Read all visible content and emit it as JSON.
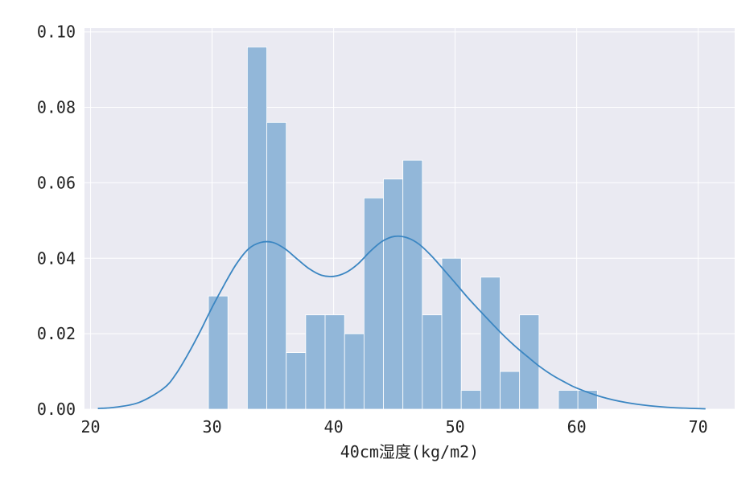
{
  "chart_data": {
    "type": "histogram",
    "xlabel": "40cm湿度(kg/m2)",
    "ylabel": "",
    "title": "",
    "xlim": [
      19.5,
      73
    ],
    "ylim": [
      0,
      0.101
    ],
    "grid": true,
    "colors": {
      "plot_background": "#eaeaf2",
      "grid": "#ffffff",
      "bar_fill": "#92b7d9",
      "kde_line": "#3b86c2"
    },
    "x_ticks": [
      {
        "value": 20,
        "label": "20"
      },
      {
        "value": 30,
        "label": "30"
      },
      {
        "value": 40,
        "label": "40"
      },
      {
        "value": 50,
        "label": "50"
      },
      {
        "value": 60,
        "label": "60"
      },
      {
        "value": 70,
        "label": "70"
      }
    ],
    "y_ticks": [
      {
        "value": 0,
        "label": "0.00"
      },
      {
        "value": 0.02,
        "label": "0.02"
      },
      {
        "value": 0.04,
        "label": "0.04"
      },
      {
        "value": 0.06,
        "label": "0.06"
      },
      {
        "value": 0.08,
        "label": "0.08"
      },
      {
        "value": 0.1,
        "label": "0.10"
      }
    ],
    "bin_width": 1.6,
    "bins": [
      {
        "start": 29.7,
        "density": 0.03
      },
      {
        "start": 31.3,
        "density": 0.0
      },
      {
        "start": 32.9,
        "density": 0.096
      },
      {
        "start": 34.5,
        "density": 0.076
      },
      {
        "start": 36.1,
        "density": 0.015
      },
      {
        "start": 37.7,
        "density": 0.025
      },
      {
        "start": 39.3,
        "density": 0.025
      },
      {
        "start": 40.9,
        "density": 0.02
      },
      {
        "start": 42.5,
        "density": 0.056
      },
      {
        "start": 44.1,
        "density": 0.061
      },
      {
        "start": 45.7,
        "density": 0.066
      },
      {
        "start": 47.3,
        "density": 0.025
      },
      {
        "start": 48.9,
        "density": 0.04
      },
      {
        "start": 50.5,
        "density": 0.005
      },
      {
        "start": 52.1,
        "density": 0.035
      },
      {
        "start": 53.7,
        "density": 0.01
      },
      {
        "start": 55.3,
        "density": 0.025
      },
      {
        "start": 56.9,
        "density": 0.0
      },
      {
        "start": 58.5,
        "density": 0.005
      },
      {
        "start": 60.1,
        "density": 0.005
      }
    ],
    "kde": {
      "x": [
        20.6,
        22,
        24,
        26,
        27,
        28,
        29,
        30,
        31,
        32,
        33,
        34,
        35,
        36,
        37,
        38,
        39,
        40,
        41,
        42,
        43,
        44,
        45,
        46,
        47,
        48,
        49,
        50,
        51,
        52,
        53,
        54,
        55,
        56,
        57,
        58,
        59,
        60,
        62,
        64,
        66,
        68,
        70.6
      ],
      "y": [
        0.0002,
        0.0005,
        0.0018,
        0.0055,
        0.0092,
        0.0145,
        0.0205,
        0.027,
        0.033,
        0.0385,
        0.0425,
        0.0442,
        0.0442,
        0.0425,
        0.0398,
        0.0372,
        0.0355,
        0.0352,
        0.0362,
        0.0385,
        0.0418,
        0.0445,
        0.0458,
        0.0455,
        0.0438,
        0.0408,
        0.0372,
        0.0335,
        0.0297,
        0.0262,
        0.0228,
        0.0195,
        0.0165,
        0.0138,
        0.0112,
        0.009,
        0.0072,
        0.0056,
        0.0033,
        0.0018,
        0.0009,
        0.0004,
        0.0001
      ]
    }
  }
}
